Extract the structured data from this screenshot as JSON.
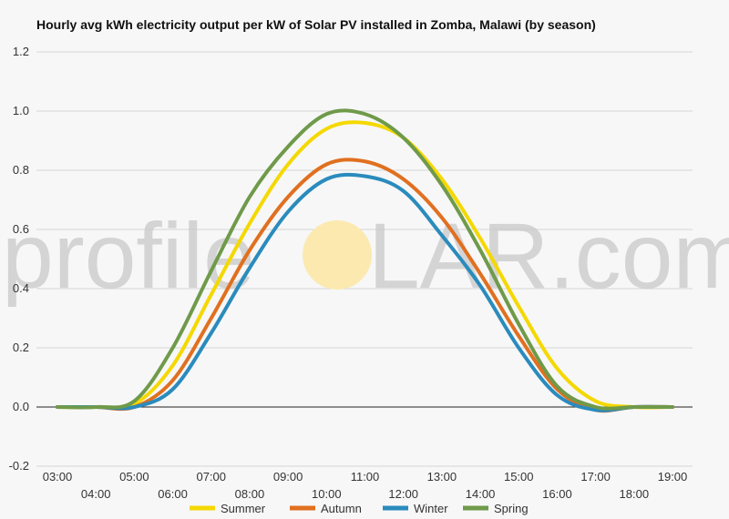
{
  "chart_data": {
    "type": "line",
    "title": "Hourly avg kWh electricity output per kW of Solar PV installed in Zomba, Malawi (by season)",
    "xlabel": "",
    "ylabel": "",
    "x_ticks_top": [
      "03:00",
      "05:00",
      "07:00",
      "09:00",
      "11:00",
      "13:00",
      "15:00",
      "17:00",
      "19:00"
    ],
    "x_ticks_bottom": [
      "04:00",
      "06:00",
      "08:00",
      "10:00",
      "12:00",
      "14:00",
      "16:00",
      "18:00"
    ],
    "y_ticks": [
      "-0.2",
      "0.0",
      "0.2",
      "0.4",
      "0.6",
      "0.8",
      "1.0",
      "1.2"
    ],
    "ylim": [
      -0.2,
      1.2
    ],
    "xlim": [
      3,
      19
    ],
    "grid": true,
    "legend_position": "bottom",
    "x": [
      3,
      4,
      5,
      6,
      7,
      8,
      9,
      10,
      11,
      12,
      13,
      14,
      15,
      16,
      17,
      18,
      19
    ],
    "series": [
      {
        "name": "Summer",
        "color": "#f5d800",
        "values": [
          0,
          0,
          0.01,
          0.14,
          0.38,
          0.62,
          0.82,
          0.94,
          0.96,
          0.91,
          0.77,
          0.57,
          0.34,
          0.13,
          0.02,
          0,
          0
        ]
      },
      {
        "name": "Autumn",
        "color": "#e07020",
        "values": [
          0,
          0,
          0,
          0.09,
          0.3,
          0.53,
          0.71,
          0.82,
          0.83,
          0.77,
          0.64,
          0.45,
          0.24,
          0.06,
          -0.01,
          0,
          0
        ]
      },
      {
        "name": "Winter",
        "color": "#2a8bbd",
        "values": [
          0,
          0,
          0,
          0.06,
          0.25,
          0.47,
          0.66,
          0.77,
          0.78,
          0.73,
          0.58,
          0.41,
          0.2,
          0.04,
          -0.01,
          0,
          0
        ]
      },
      {
        "name": "Spring",
        "color": "#6f9a4a",
        "values": [
          0,
          0,
          0.02,
          0.2,
          0.46,
          0.71,
          0.88,
          0.99,
          0.99,
          0.91,
          0.75,
          0.53,
          0.28,
          0.07,
          0,
          0,
          0
        ]
      }
    ]
  },
  "watermark": {
    "left": "profile",
    "right": "LAR.com",
    "sun_color": "#fbe9b0"
  }
}
